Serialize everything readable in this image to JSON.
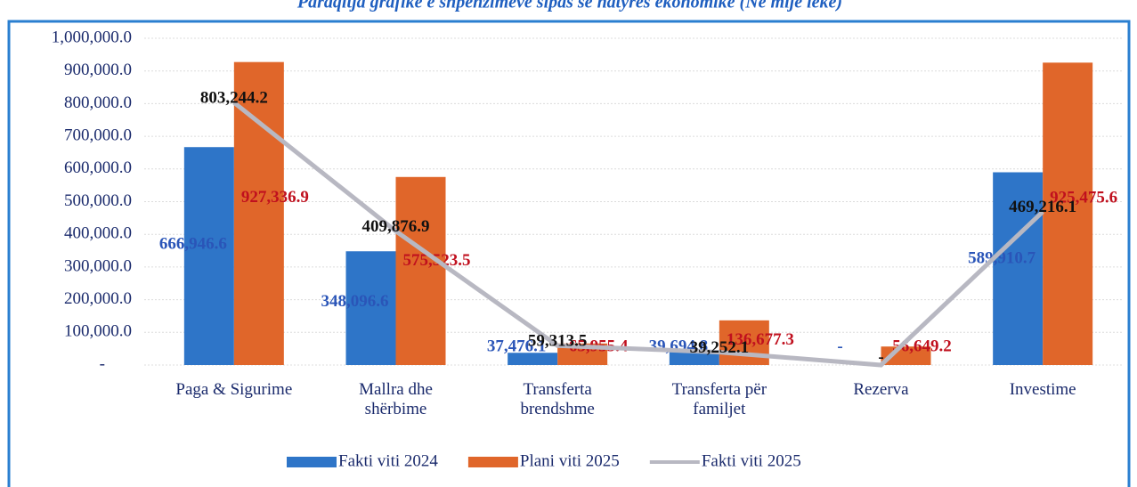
{
  "chart_data": {
    "type": "bar",
    "title": "Paraqitja grafike e shpenzimeve sipas së natyrës ekonomike (Në mijë lekë)",
    "categories": [
      "Paga & Sigurime",
      "Mallra dhe shërbime",
      "Transferta brendshme",
      "Transferta për familjet",
      "Rezerva",
      "Investime"
    ],
    "series": [
      {
        "name": "Fakti viti 2024",
        "type": "bar",
        "color": "#2e75c8",
        "label_color": "#2a55b8",
        "values": [
          666946.6,
          348096.6,
          37476.1,
          39694.8,
          0,
          589910.7
        ],
        "value_labels": [
          "666,946.6",
          "348,096.6",
          "37,476.1",
          "39,694.8",
          "-",
          "589,910.7"
        ]
      },
      {
        "name": "Plani viti 2025",
        "type": "bar",
        "color": "#e0662a",
        "label_color": "#c0101e",
        "values": [
          927336.9,
          575523.5,
          65955.4,
          136677.3,
          56649.2,
          925475.6
        ],
        "value_labels": [
          "927,336.9",
          "575,523.5",
          "65,955.4",
          "136,677.3",
          "56,649.2",
          "925,475.6"
        ]
      },
      {
        "name": "Fakti viti 2025",
        "type": "line",
        "color": "#b8b8c2",
        "label_color": "#111111",
        "values": [
          803244.2,
          409876.9,
          59313.5,
          39252.1,
          0,
          469216.1
        ],
        "value_labels": [
          "803,244.2",
          "409,876.9",
          "59,313.5",
          "39,252.1",
          "-",
          "469,216.1"
        ]
      }
    ],
    "ylim": [
      0,
      1000000
    ],
    "yticks": [
      {
        "value": 0,
        "label": "-"
      },
      {
        "value": 100000,
        "label": "100,000.0"
      },
      {
        "value": 200000,
        "label": "200,000.0"
      },
      {
        "value": 300000,
        "label": "300,000.0"
      },
      {
        "value": 400000,
        "label": "400,000.0"
      },
      {
        "value": 500000,
        "label": "500,000.0"
      },
      {
        "value": 600000,
        "label": "600,000.0"
      },
      {
        "value": 700000,
        "label": "700,000.0"
      },
      {
        "value": 800000,
        "label": "800,000.0"
      },
      {
        "value": 900000,
        "label": "900,000.0"
      },
      {
        "value": 1000000,
        "label": "1,000,000.0"
      }
    ],
    "grid": true,
    "legend": "bottom"
  }
}
